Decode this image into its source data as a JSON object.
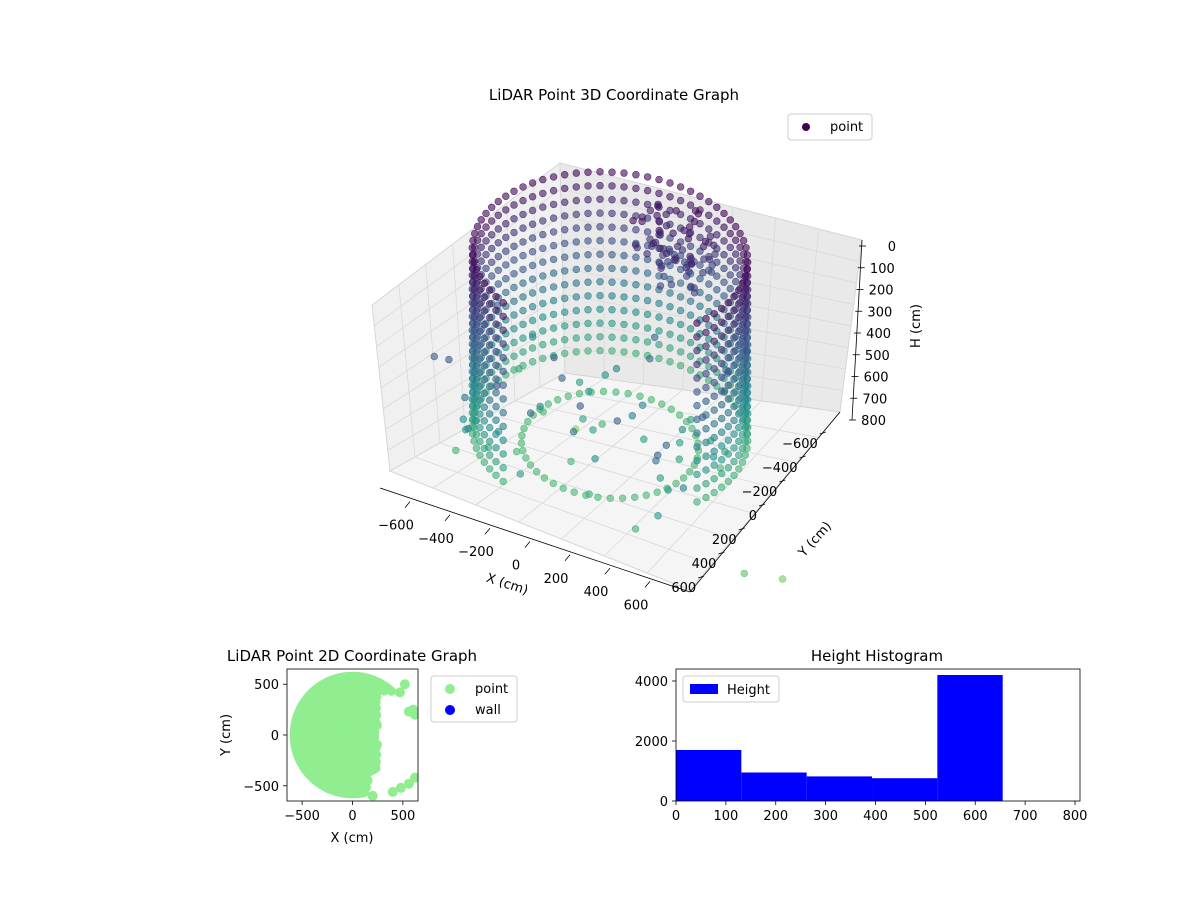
{
  "chart_data": [
    {
      "type": "scatter3d",
      "title": "LiDAR Point 3D Coordinate Graph",
      "xlabel": "X (cm)",
      "ylabel": "Y (cm)",
      "zlabel": "H (cm)",
      "xlim": [
        -700,
        700
      ],
      "ylim": [
        -700,
        700
      ],
      "zlim": [
        800,
        0
      ],
      "xticks": [
        "−600",
        "−400",
        "−200",
        "0",
        "200",
        "400",
        "600"
      ],
      "yticks": [
        "−600",
        "−400",
        "−200",
        "0",
        "200",
        "400",
        "600"
      ],
      "zticks": [
        "0",
        "100",
        "200",
        "300",
        "400",
        "500",
        "600",
        "700",
        "800"
      ],
      "legend": {
        "position": "top-right",
        "entries": [
          {
            "name": "point",
            "color": "#440154"
          }
        ]
      },
      "colormap": "viridis",
      "grid": true,
      "series": [
        {
          "name": "point",
          "description_points": [
            {
              "x": 500,
              "y": -500,
              "h": 650
            },
            {
              "x": 650,
              "y": -600,
              "h": 750
            },
            {
              "x": 0,
              "y": -300,
              "h": 600
            }
          ]
        }
      ]
    },
    {
      "type": "scatter",
      "title": "LiDAR Point 2D Coordinate Graph",
      "xlabel": "X (cm)",
      "ylabel": "Y (cm)",
      "xlim": [
        -650,
        650
      ],
      "ylim": [
        -650,
        650
      ],
      "xticks": [
        "−500",
        "0",
        "500"
      ],
      "yticks": [
        "−500",
        "0",
        "500"
      ],
      "legend": {
        "position": "outside-right",
        "entries": [
          {
            "name": "point",
            "color": "#90ee90"
          },
          {
            "name": "wall",
            "color": "#0000ff"
          }
        ]
      }
    },
    {
      "type": "bar",
      "title": "Height Histogram",
      "xlim": [
        0,
        810
      ],
      "ylim": [
        0,
        4400
      ],
      "xticks": [
        "0",
        "100",
        "200",
        "300",
        "400",
        "500",
        "600",
        "700",
        "800"
      ],
      "yticks": [
        "0",
        "2000",
        "4000"
      ],
      "legend": {
        "position": "top-left",
        "entries": [
          {
            "name": "Height",
            "color": "#0000ff"
          }
        ]
      },
      "bins": [
        {
          "start": 0,
          "end": 131,
          "count": 1700
        },
        {
          "start": 131,
          "end": 262,
          "count": 950
        },
        {
          "start": 262,
          "end": 393,
          "count": 820
        },
        {
          "start": 393,
          "end": 524,
          "count": 760
        },
        {
          "start": 524,
          "end": 655,
          "count": 4200
        },
        {
          "start": 655,
          "end": 786,
          "count": 0
        }
      ]
    }
  ]
}
